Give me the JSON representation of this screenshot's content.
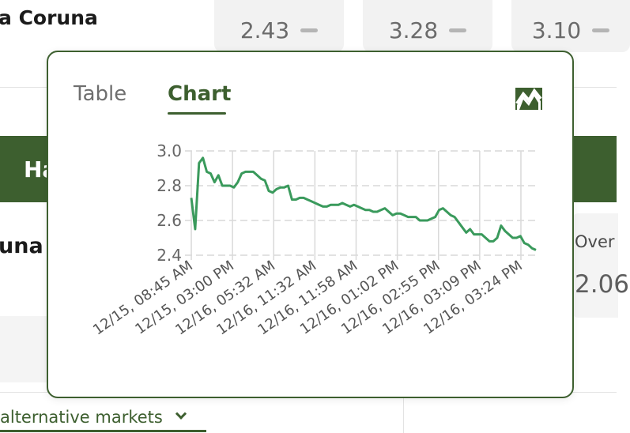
{
  "background": {
    "team_top": "a Coruna",
    "odds": [
      "2.43",
      "3.28",
      "3.10"
    ],
    "band_text": "Ha",
    "team_mid": "una",
    "over_label": "Over",
    "over_value": "2.06",
    "alt_markets_label": "alternative markets"
  },
  "popover": {
    "tabs": {
      "table": "Table",
      "chart": "Chart"
    },
    "active_tab": "Chart",
    "icon": "chart-line-icon"
  },
  "colors": {
    "accent": "#3d5f2f",
    "line": "#3a9a5c",
    "grid": "#d9d9d9"
  },
  "chart_data": {
    "type": "line",
    "title": "",
    "xlabel": "",
    "ylabel": "",
    "ylim": [
      2.4,
      3.0
    ],
    "yticks": [
      "2.4",
      "2.6",
      "2.8",
      "3.0"
    ],
    "xticks": [
      "12/15, 08:45 AM",
      "12/15, 03:00 PM",
      "12/16, 05:32 AM",
      "12/16, 11:32 AM",
      "12/16, 11:58 AM",
      "12/16, 01:02 PM",
      "12/16, 02:55 PM",
      "12/16, 03:09 PM",
      "12/16, 03:24 PM"
    ],
    "grid": true,
    "values": [
      2.73,
      2.55,
      2.93,
      2.96,
      2.88,
      2.87,
      2.82,
      2.86,
      2.8,
      2.8,
      2.8,
      2.79,
      2.82,
      2.87,
      2.88,
      2.88,
      2.88,
      2.86,
      2.84,
      2.83,
      2.77,
      2.76,
      2.78,
      2.79,
      2.79,
      2.8,
      2.72,
      2.72,
      2.73,
      2.73,
      2.72,
      2.71,
      2.7,
      2.69,
      2.68,
      2.68,
      2.69,
      2.69,
      2.69,
      2.7,
      2.69,
      2.68,
      2.69,
      2.68,
      2.67,
      2.66,
      2.66,
      2.65,
      2.65,
      2.66,
      2.67,
      2.65,
      2.63,
      2.64,
      2.64,
      2.63,
      2.62,
      2.62,
      2.62,
      2.6,
      2.6,
      2.6,
      2.61,
      2.62,
      2.66,
      2.67,
      2.65,
      2.63,
      2.62,
      2.59,
      2.56,
      2.53,
      2.55,
      2.52,
      2.52,
      2.52,
      2.5,
      2.48,
      2.48,
      2.5,
      2.57,
      2.54,
      2.52,
      2.5,
      2.5,
      2.51,
      2.47,
      2.46,
      2.44,
      2.43
    ]
  }
}
